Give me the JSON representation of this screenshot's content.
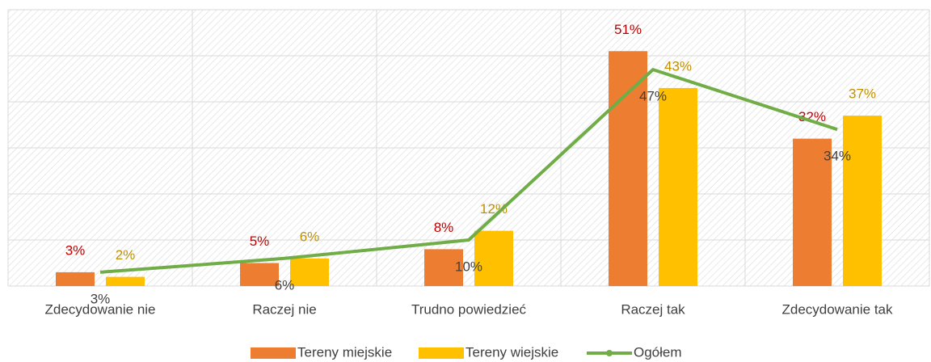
{
  "chart_data": {
    "type": "bar",
    "categories": [
      "Zdecydowanie nie",
      "Raczej nie",
      "Trudno powiedzieć",
      "Raczej tak",
      "Zdecydowanie tak"
    ],
    "series": [
      {
        "name": "Tereny miejskie",
        "type": "bar",
        "color": "#ed7d31",
        "label_color": "#c00000",
        "values": [
          3,
          5,
          8,
          51,
          32
        ],
        "value_labels": [
          "3%",
          "5%",
          "8%",
          "51%",
          "32%"
        ]
      },
      {
        "name": "Tereny wiejskie",
        "type": "bar",
        "color": "#ffc000",
        "label_color": "#bf9000",
        "values": [
          2,
          6,
          12,
          43,
          37
        ],
        "value_labels": [
          "2%",
          "6%",
          "12%",
          "43%",
          "37%"
        ]
      },
      {
        "name": "Ogółem",
        "type": "line",
        "color": "#70ad47",
        "label_color": "#404040",
        "values": [
          3,
          6,
          10,
          47,
          34
        ],
        "value_labels": [
          "3%",
          "6%",
          "10%",
          "47%",
          "34%"
        ]
      }
    ],
    "ylim": [
      0,
      60
    ],
    "yticks": [
      0,
      10,
      20,
      30,
      40,
      50,
      60
    ],
    "grid": true,
    "legend": "bottom"
  }
}
